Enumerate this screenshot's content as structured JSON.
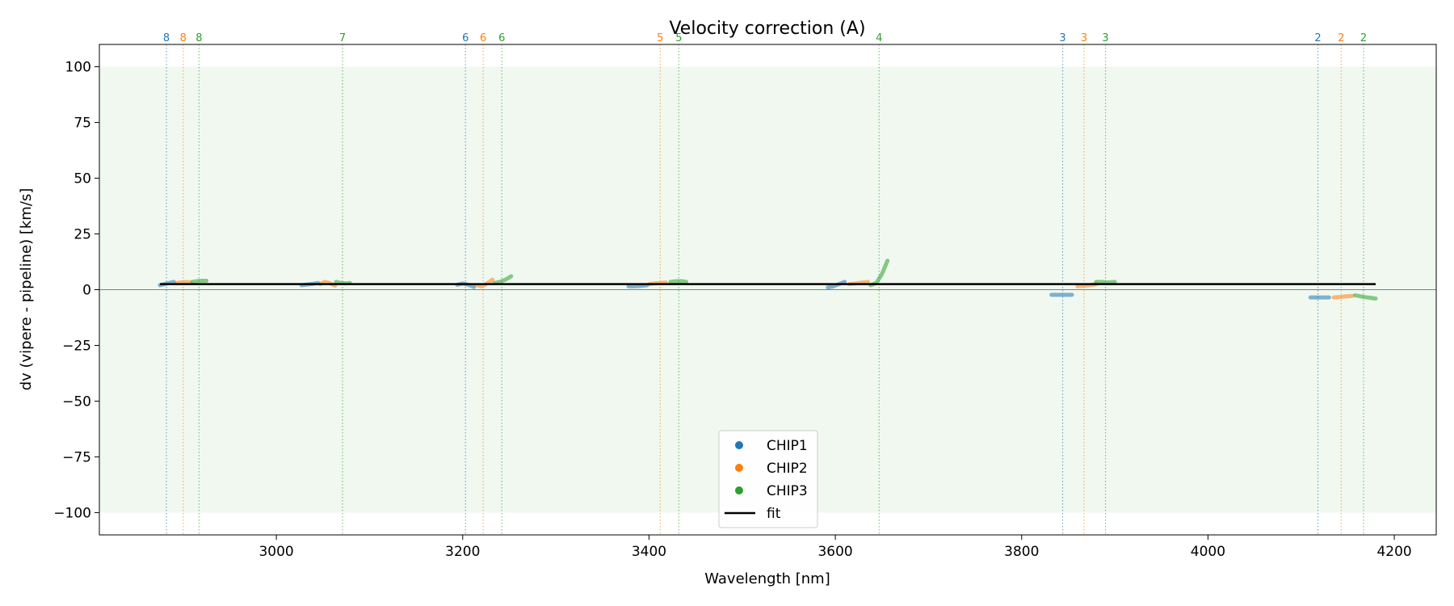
{
  "chart_data": {
    "type": "scatter",
    "title": "Velocity correction (A)",
    "xlabel": "Wavelength [nm]",
    "ylabel": "dv (vipere - pipeline) [km/s]",
    "xlim": [
      2810,
      4245
    ],
    "ylim": [
      -110,
      110
    ],
    "xticks": [
      3000,
      3200,
      3400,
      3600,
      3800,
      4000,
      4200
    ],
    "yticks": [
      100,
      75,
      50,
      25,
      0,
      -25,
      -50,
      -75,
      -100
    ],
    "band": {
      "from": -100,
      "to": 100,
      "color": "#2ca02c"
    },
    "zero_line": 0,
    "colors": {
      "CHIP1": "#1f77b4",
      "CHIP2": "#ff7f0e",
      "CHIP3": "#2ca02c",
      "fit": "#000000"
    },
    "legend": {
      "position": "lower-center",
      "entries": [
        {
          "label": "CHIP1",
          "type": "marker",
          "color": "#1f77b4"
        },
        {
          "label": "CHIP2",
          "type": "marker",
          "color": "#ff7f0e"
        },
        {
          "label": "CHIP3",
          "type": "marker",
          "color": "#2ca02c"
        },
        {
          "label": "fit",
          "type": "line",
          "color": "#000000"
        }
      ]
    },
    "order_markers": [
      {
        "label": "8",
        "x": 2882,
        "chip": "CHIP1"
      },
      {
        "label": "8",
        "x": 2900,
        "chip": "CHIP2"
      },
      {
        "label": "8",
        "x": 2917,
        "chip": "CHIP3"
      },
      {
        "label": "7",
        "x": 3071,
        "chip": "CHIP3"
      },
      {
        "label": "6",
        "x": 3203,
        "chip": "CHIP1"
      },
      {
        "label": "6",
        "x": 3222,
        "chip": "CHIP2"
      },
      {
        "label": "6",
        "x": 3242,
        "chip": "CHIP3"
      },
      {
        "label": "5",
        "x": 3412,
        "chip": "CHIP2"
      },
      {
        "label": "5",
        "x": 3432,
        "chip": "CHIP3"
      },
      {
        "label": "4",
        "x": 3647,
        "chip": "CHIP3"
      },
      {
        "label": "3",
        "x": 3844,
        "chip": "CHIP1"
      },
      {
        "label": "3",
        "x": 3867,
        "chip": "CHIP2"
      },
      {
        "label": "3",
        "x": 3890,
        "chip": "CHIP3"
      },
      {
        "label": "2",
        "x": 4118,
        "chip": "CHIP1"
      },
      {
        "label": "2",
        "x": 4143,
        "chip": "CHIP2"
      },
      {
        "label": "2",
        "x": 4167,
        "chip": "CHIP3"
      }
    ],
    "series": [
      {
        "name": "CHIP1",
        "segments": [
          {
            "x": [
              2875,
              2880,
              2885,
              2890
            ],
            "y": [
              2,
              2.5,
              3,
              3.5
            ]
          },
          {
            "x": [
              3027,
              3033,
              3039,
              3045
            ],
            "y": [
              2,
              2.3,
              2.6,
              3
            ]
          },
          {
            "x": [
              3194,
              3200,
              3206,
              3212
            ],
            "y": [
              2.2,
              2.8,
              2.2,
              1.2
            ]
          },
          {
            "x": [
              3378,
              3385,
              3392,
              3398
            ],
            "y": [
              1.5,
              1.5,
              1.7,
              2
            ]
          },
          {
            "x": [
              3592,
              3598,
              3604,
              3610
            ],
            "y": [
              1,
              1.5,
              2.5,
              3.5
            ]
          },
          {
            "x": [
              3832,
              3838,
              3844,
              3854
            ],
            "y": [
              -2.3,
              -2.3,
              -2.3,
              -2.3
            ]
          },
          {
            "x": [
              4110,
              4116,
              4122,
              4130
            ],
            "y": [
              -3.5,
              -3.5,
              -3.5,
              -3.5
            ]
          }
        ]
      },
      {
        "name": "CHIP2",
        "segments": [
          {
            "x": [
              2893,
              2898,
              2903,
              2908
            ],
            "y": [
              3,
              3.3,
              3.4,
              3.3
            ]
          },
          {
            "x": [
              3047,
              3052,
              3057,
              3063
            ],
            "y": [
              2.5,
              3.5,
              3,
              1.8
            ]
          },
          {
            "x": [
              3215,
              3220,
              3225,
              3232
            ],
            "y": [
              2,
              1.5,
              2.5,
              4.5
            ]
          },
          {
            "x": [
              3400,
              3406,
              3412,
              3418
            ],
            "y": [
              2.5,
              2.8,
              3,
              3.2
            ]
          },
          {
            "x": [
              3615,
              3622,
              3629,
              3635
            ],
            "y": [
              2.5,
              2.8,
              3.2,
              3.5
            ]
          },
          {
            "x": [
              3860,
              3866,
              3872,
              3880
            ],
            "y": [
              1.5,
              1.7,
              2,
              2.5
            ]
          },
          {
            "x": [
              4135,
              4141,
              4148,
              4155
            ],
            "y": [
              -3.5,
              -3.3,
              -3,
              -2.8
            ]
          }
        ]
      },
      {
        "name": "CHIP3",
        "segments": [
          {
            "x": [
              2910,
              2915,
              2920,
              2925
            ],
            "y": [
              3.5,
              3.8,
              4,
              4
            ]
          },
          {
            "x": [
              3064,
              3069,
              3074,
              3079
            ],
            "y": [
              3.5,
              3,
              2.8,
              3
            ]
          },
          {
            "x": [
              3234,
              3240,
              3246,
              3252
            ],
            "y": [
              3,
              3.5,
              4.5,
              6
            ]
          },
          {
            "x": [
              3423,
              3429,
              3435,
              3440
            ],
            "y": [
              3.5,
              3.8,
              3.8,
              3.5
            ]
          },
          {
            "x": [
              3638,
              3644,
              3650,
              3656
            ],
            "y": [
              2,
              3,
              7,
              13
            ]
          },
          {
            "x": [
              3880,
              3886,
              3892,
              3900
            ],
            "y": [
              3.5,
              3.5,
              3.2,
              3.5
            ]
          },
          {
            "x": [
              4158,
              4164,
              4171,
              4180
            ],
            "y": [
              -2.5,
              -3,
              -3.5,
              -4
            ]
          }
        ]
      }
    ],
    "fit": {
      "name": "fit",
      "x": [
        2875,
        4180
      ],
      "y": [
        2.5,
        2.5
      ]
    }
  }
}
